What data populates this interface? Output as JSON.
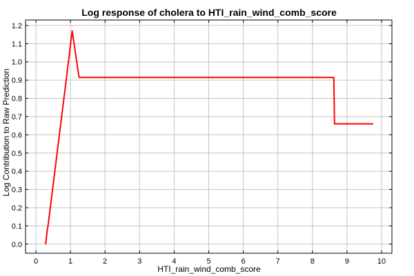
{
  "chart_data": {
    "type": "line",
    "title": "Log response of cholera to HTI_rain_wind_comb_score",
    "xlabel": "HTI_rain_wind_comb_score",
    "ylabel": "Log Contribution to Raw Prediction",
    "xlim": [
      -0.3,
      10.3
    ],
    "ylim": [
      -0.05,
      1.23
    ],
    "grid": true,
    "xticks": [
      "0",
      "1",
      "2",
      "3",
      "4",
      "5",
      "6",
      "7",
      "8",
      "9",
      "10"
    ],
    "yticks": [
      "0.0",
      "0.1",
      "0.2",
      "0.3",
      "0.4",
      "0.5",
      "0.6",
      "0.7",
      "0.8",
      "0.9",
      "1.0",
      "1.1",
      "1.2"
    ],
    "series": [
      {
        "color": "#ff0000",
        "x": [
          0.28,
          0.33,
          0.35,
          0.85,
          0.87,
          1.05,
          1.25,
          8.62,
          8.64,
          9.75
        ],
        "y": [
          0.0,
          0.08,
          0.1,
          0.86,
          0.89,
          1.17,
          0.915,
          0.915,
          0.66,
          0.66
        ]
      }
    ]
  }
}
